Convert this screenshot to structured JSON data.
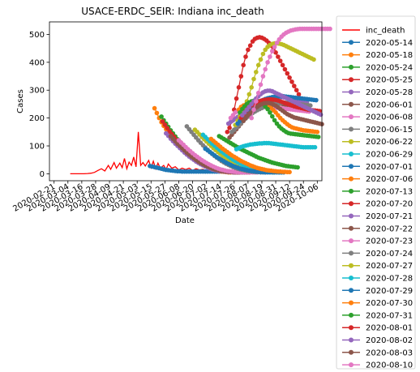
{
  "chart_data": {
    "type": "line",
    "title": "USACE-ERDC_SEIR: Indiana inc_death",
    "xlabel": "Date",
    "ylabel": "Cases",
    "ylim": [
      -25,
      545
    ],
    "xlim": [
      "2020-02-17",
      "2020-10-10"
    ],
    "y_ticks": [
      0,
      100,
      200,
      300,
      400,
      500
    ],
    "x_ticks": [
      "2020-02-21",
      "2020-03-04",
      "2020-03-16",
      "2020-03-28",
      "2020-04-09",
      "2020-04-21",
      "2020-05-03",
      "2020-05-15",
      "2020-05-27",
      "2020-06-08",
      "2020-06-20",
      "2020-07-02",
      "2020-07-14",
      "2020-07-26",
      "2020-08-07",
      "2020-08-19",
      "2020-08-31",
      "2020-09-12",
      "2020-09-24",
      "2020-10-06"
    ],
    "grid": false,
    "legend_position": "outside-right",
    "observed": {
      "name": "inc_death",
      "color": "#ff0000",
      "x": [
        "2020-03-06",
        "2020-03-09",
        "2020-03-12",
        "2020-03-15",
        "2020-03-18",
        "2020-03-21",
        "2020-03-24",
        "2020-03-27",
        "2020-03-30",
        "2020-04-02",
        "2020-04-05",
        "2020-04-08",
        "2020-04-10",
        "2020-04-13",
        "2020-04-15",
        "2020-04-18",
        "2020-04-20",
        "2020-04-22",
        "2020-04-24",
        "2020-04-26",
        "2020-04-28",
        "2020-04-30",
        "2020-05-02",
        "2020-05-04",
        "2020-05-06",
        "2020-05-08",
        "2020-05-10",
        "2020-05-13",
        "2020-05-15",
        "2020-05-17",
        "2020-05-19",
        "2020-05-21",
        "2020-05-23",
        "2020-05-26",
        "2020-05-28",
        "2020-05-30",
        "2020-06-02",
        "2020-06-05",
        "2020-06-08",
        "2020-06-11",
        "2020-06-14",
        "2020-06-17",
        "2020-06-20",
        "2020-06-23",
        "2020-06-26",
        "2020-06-29",
        "2020-07-02",
        "2020-07-06",
        "2020-07-10",
        "2020-07-14"
      ],
      "y": [
        0,
        0,
        0,
        0,
        0,
        1,
        2,
        5,
        12,
        18,
        10,
        30,
        16,
        40,
        20,
        38,
        22,
        55,
        18,
        42,
        30,
        60,
        25,
        150,
        30,
        40,
        28,
        48,
        22,
        45,
        18,
        38,
        20,
        30,
        15,
        35,
        20,
        25,
        14,
        20,
        15,
        20,
        12,
        18,
        14,
        16,
        10,
        12,
        8,
        10
      ]
    },
    "forecasts": [
      {
        "name": "2020-05-14",
        "color": "#1f77b4",
        "start": "2020-05-14",
        "y": [
          28,
          26,
          24,
          22,
          20,
          18,
          16,
          14,
          13,
          12,
          11,
          10,
          9,
          9,
          8,
          8,
          8,
          8,
          8,
          8,
          8,
          8,
          8,
          8,
          8,
          8,
          8,
          8,
          8,
          8,
          8,
          8,
          8,
          8,
          8
        ]
      },
      {
        "name": "2020-05-18",
        "color": "#ff7f0e",
        "start": "2020-05-18",
        "y": [
          235,
          218,
          200,
          185,
          172,
          160,
          148,
          138,
          128,
          118,
          108,
          98,
          90,
          82,
          74,
          66,
          60,
          54,
          48,
          42,
          36,
          32,
          28,
          24,
          20,
          16,
          14,
          12,
          10,
          8,
          7,
          6,
          5,
          5,
          5
        ]
      },
      {
        "name": "2020-05-24",
        "color": "#2ca02c",
        "start": "2020-05-24",
        "y": [
          205,
          192,
          180,
          168,
          156,
          145,
          134,
          124,
          114,
          104,
          95,
          86,
          78,
          70,
          62,
          55,
          48,
          42,
          36,
          31,
          27,
          23,
          20,
          17,
          15,
          13,
          11,
          10,
          9,
          8,
          7,
          6,
          6,
          5,
          5
        ]
      },
      {
        "name": "2020-05-25",
        "color": "#d62728",
        "start": "2020-05-25",
        "y": [
          188,
          176,
          164,
          152,
          142,
          132,
          122,
          112,
          102,
          94,
          86,
          78,
          70,
          62,
          56,
          50,
          44,
          38,
          33,
          28,
          24,
          20,
          17,
          14,
          12,
          10,
          9,
          8,
          7,
          6,
          6,
          5,
          5,
          5,
          5
        ]
      },
      {
        "name": "2020-05-28",
        "color": "#9467bd",
        "start": "2020-05-28",
        "y": [
          145,
          136,
          126,
          117,
          108,
          100,
          92,
          84,
          76,
          69,
          62,
          56,
          50,
          44,
          39,
          34,
          30,
          26,
          22,
          19,
          16,
          14,
          12,
          10,
          9,
          8,
          7,
          6,
          6,
          5,
          5,
          5,
          5,
          5,
          5
        ]
      },
      {
        "name": "2020-06-01",
        "color": "#8c564b",
        "start": "2020-06-01",
        "y": [
          135,
          126,
          117,
          108,
          100,
          92,
          84,
          76,
          69,
          62,
          56,
          50,
          44,
          39,
          34,
          30,
          26,
          22,
          19,
          16,
          14,
          12,
          10,
          9,
          8,
          7,
          6,
          6,
          5,
          5,
          5,
          5,
          5,
          5,
          5
        ]
      },
      {
        "name": "2020-06-08",
        "color": "#e377c2",
        "start": "2020-06-08",
        "y": [
          120,
          112,
          104,
          96,
          88,
          81,
          74,
          67,
          61,
          55,
          49,
          44,
          39,
          34,
          30,
          26,
          22,
          19,
          16,
          14,
          12,
          10,
          9,
          8,
          7,
          6,
          6,
          5,
          5,
          5,
          5,
          5,
          5,
          5,
          5
        ]
      },
      {
        "name": "2020-06-15",
        "color": "#7f7f7f",
        "start": "2020-06-15",
        "y": [
          170,
          160,
          150,
          140,
          130,
          120,
          111,
          102,
          94,
          86,
          78,
          71,
          64,
          58,
          52,
          46,
          41,
          36,
          32,
          28,
          24,
          21,
          18,
          16,
          14,
          12,
          10,
          9,
          8,
          7,
          6,
          6,
          5,
          5,
          5
        ]
      },
      {
        "name": "2020-06-22",
        "color": "#bcbd22",
        "start": "2020-06-22",
        "y": [
          158,
          150,
          141,
          132,
          124,
          116,
          108,
          100,
          92,
          85,
          78,
          71,
          65,
          59,
          53,
          48,
          43,
          38,
          34,
          30,
          27,
          24,
          21,
          18,
          16,
          14,
          12,
          11,
          10,
          9,
          8,
          7,
          6,
          6,
          5
        ]
      },
      {
        "name": "2020-06-29",
        "color": "#17becf",
        "start": "2020-06-29",
        "y": [
          140,
          132,
          124,
          116,
          108,
          101,
          94,
          87,
          80,
          74,
          68,
          62,
          56,
          51,
          46,
          41,
          37,
          33,
          29,
          26,
          23,
          20,
          18,
          16,
          14,
          12,
          11,
          10,
          9,
          8,
          7,
          6,
          6,
          5,
          5
        ]
      },
      {
        "name": "2020-07-01",
        "color": "#1f77b4",
        "start": "2020-07-01",
        "y": [
          90,
          84,
          78,
          72,
          66,
          60,
          55,
          50,
          45,
          40,
          36,
          32,
          28,
          25,
          22,
          19,
          17,
          15,
          13,
          11,
          10,
          9,
          8,
          7,
          6,
          6,
          5,
          5,
          5,
          5,
          5,
          5,
          5,
          5,
          5
        ]
      },
      {
        "name": "2020-07-06",
        "color": "#ff7f0e",
        "start": "2020-07-06",
        "y": [
          125,
          118,
          111,
          104,
          97,
          90,
          84,
          78,
          72,
          66,
          61,
          56,
          51,
          46,
          42,
          38,
          34,
          30,
          27,
          24,
          21,
          19,
          17,
          15,
          13,
          12,
          11,
          10,
          9,
          8,
          8,
          7,
          7,
          6,
          6
        ]
      },
      {
        "name": "2020-07-13",
        "color": "#2ca02c",
        "start": "2020-07-13",
        "y": [
          135,
          130,
          125,
          120,
          115,
          110,
          105,
          100,
          95,
          90,
          86,
          82,
          78,
          74,
          70,
          66,
          62,
          58,
          55,
          52,
          49,
          46,
          43,
          40,
          38,
          36,
          34,
          32,
          30,
          28,
          27,
          26,
          25,
          24,
          23
        ]
      },
      {
        "name": "2020-07-20",
        "color": "#d62728",
        "start": "2020-07-20",
        "y": [
          150,
          165,
          190,
          230,
          270,
          310,
          350,
          390,
          420,
          445,
          460,
          475,
          484,
          488,
          490,
          488,
          484,
          478,
          470,
          460,
          448,
          435,
          420,
          405,
          390,
          375,
          360,
          345,
          330,
          315,
          300,
          285,
          270,
          255,
          245
        ]
      },
      {
        "name": "2020-07-21",
        "color": "#9467bd",
        "start": "2020-07-21",
        "y": [
          180,
          186,
          192,
          198,
          204,
          210,
          216,
          222,
          228,
          234,
          240,
          246,
          252,
          258,
          262,
          265,
          268,
          270,
          272,
          273,
          274,
          275,
          275,
          275,
          274,
          272,
          270,
          268,
          266,
          264,
          262,
          260,
          258,
          256,
          255
        ]
      },
      {
        "name": "2020-07-22",
        "color": "#8c564b",
        "start": "2020-07-22",
        "y": [
          130,
          140,
          150,
          160,
          170,
          180,
          190,
          200,
          208,
          216,
          224,
          230,
          235,
          240,
          244,
          248,
          250,
          252,
          253,
          254,
          254,
          253,
          252,
          250,
          248,
          246,
          244,
          242,
          240,
          238,
          236,
          234,
          232,
          230,
          228
        ]
      },
      {
        "name": "2020-07-23",
        "color": "#e377c2",
        "start": "2020-07-23",
        "y": [
          200,
          210,
          220,
          225,
          228,
          230,
          232,
          234,
          235,
          236,
          237,
          238,
          239,
          240,
          240,
          240,
          240,
          240,
          239,
          238,
          237,
          236,
          235,
          234,
          233,
          232,
          231,
          230,
          229,
          228,
          227,
          226,
          225,
          224,
          223
        ]
      },
      {
        "name": "2020-07-24",
        "color": "#7f7f7f",
        "start": "2020-07-24",
        "y": [
          150,
          158,
          166,
          174,
          182,
          190,
          198,
          205,
          212,
          218,
          223,
          228,
          232,
          236,
          240,
          243,
          246,
          248,
          250,
          252,
          253,
          254,
          255,
          255,
          255,
          254,
          253,
          252,
          251,
          250,
          249,
          248,
          247,
          246,
          245
        ]
      },
      {
        "name": "2020-07-27",
        "color": "#bcbd22",
        "start": "2020-07-27",
        "y": [
          175,
          190,
          205,
          220,
          240,
          260,
          285,
          310,
          340,
          365,
          390,
          410,
          430,
          445,
          455,
          462,
          466,
          468,
          468,
          467,
          465,
          462,
          458,
          454,
          450,
          446,
          442,
          438,
          434,
          430,
          426,
          422,
          418,
          414,
          410
        ]
      },
      {
        "name": "2020-07-28",
        "color": "#17becf",
        "start": "2020-07-28",
        "y": [
          88,
          92,
          96,
          99,
          101,
          103,
          105,
          106,
          107,
          108,
          109,
          109,
          110,
          110,
          110,
          109,
          108,
          107,
          106,
          105,
          104,
          103,
          102,
          101,
          100,
          99,
          98,
          97,
          96,
          95,
          95,
          95,
          95,
          95,
          95
        ]
      },
      {
        "name": "2020-07-29",
        "color": "#1f77b4",
        "start": "2020-07-29",
        "y": [
          180,
          190,
          200,
          210,
          220,
          228,
          236,
          243,
          250,
          255,
          260,
          264,
          268,
          271,
          273,
          275,
          276,
          277,
          278,
          278,
          278,
          277,
          276,
          275,
          274,
          273,
          272,
          271,
          270,
          269,
          268,
          267,
          266,
          265,
          264
        ]
      },
      {
        "name": "2020-07-30",
        "color": "#ff7f0e",
        "start": "2020-07-30",
        "y": [
          230,
          240,
          245,
          248,
          250,
          252,
          253,
          254,
          254,
          253,
          252,
          250,
          246,
          242,
          236,
          228,
          220,
          210,
          200,
          192,
          185,
          178,
          172,
          167,
          164,
          162,
          160,
          158,
          156,
          155,
          154,
          153,
          152,
          151,
          150
        ]
      },
      {
        "name": "2020-07-31",
        "color": "#2ca02c",
        "start": "2020-07-31",
        "y": [
          220,
          232,
          242,
          250,
          256,
          260,
          262,
          262,
          260,
          256,
          250,
          242,
          232,
          220,
          206,
          192,
          180,
          170,
          162,
          156,
          150,
          146,
          144,
          143,
          142,
          141,
          140,
          139,
          138,
          137,
          136,
          135,
          134,
          133,
          132
        ]
      },
      {
        "name": "2020-08-01",
        "color": "#d62728",
        "start": "2020-08-01",
        "y": [
          200,
          212,
          224,
          234,
          242,
          248,
          252,
          256,
          260,
          263,
          265,
          266,
          267,
          267,
          266,
          265,
          263,
          260,
          257,
          254,
          251,
          248,
          245,
          242,
          240,
          238,
          236,
          234,
          232,
          230,
          229,
          228,
          227,
          226,
          225
        ]
      },
      {
        "name": "2020-08-02",
        "color": "#9467bd",
        "start": "2020-08-02",
        "y": [
          210,
          220,
          230,
          240,
          250,
          260,
          270,
          278,
          286,
          292,
          296,
          298,
          298,
          296,
          292,
          288,
          284,
          280,
          276,
          272,
          268,
          264,
          260,
          256,
          252,
          248,
          244,
          240,
          236,
          232,
          228,
          224,
          220,
          216,
          212
        ]
      },
      {
        "name": "2020-08-03",
        "color": "#8c564b",
        "start": "2020-08-03",
        "y": [
          190,
          200,
          210,
          218,
          226,
          234,
          240,
          246,
          250,
          253,
          254,
          254,
          252,
          248,
          244,
          238,
          232,
          226,
          220,
          214,
          210,
          206,
          202,
          200,
          198,
          196,
          194,
          192,
          190,
          188,
          186,
          184,
          182,
          180,
          178
        ]
      },
      {
        "name": "2020-08-10",
        "color": "#e377c2",
        "start": "2020-08-10",
        "y": [
          200,
          230,
          260,
          290,
          320,
          350,
          375,
          400,
          420,
          440,
          455,
          470,
          482,
          492,
          500,
          506,
          510,
          514,
          516,
          518,
          519,
          520,
          520,
          520,
          520,
          520,
          520,
          520,
          520,
          520,
          520,
          520,
          520,
          520,
          520
        ]
      }
    ]
  }
}
